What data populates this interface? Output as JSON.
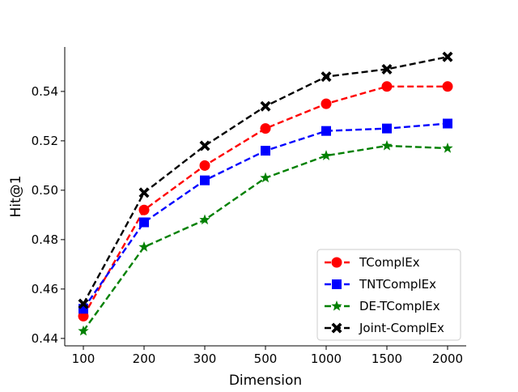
{
  "chart_data": {
    "type": "line",
    "xlabel": "Dimension",
    "ylabel": "Hit@1",
    "categories": [
      "100",
      "200",
      "300",
      "500",
      "1000",
      "1500",
      "2000"
    ],
    "ylim": [
      0.437,
      0.558
    ],
    "yticks": [
      "0.44",
      "0.46",
      "0.48",
      "0.50",
      "0.52",
      "0.54"
    ],
    "grid": false,
    "legend_position": "lower-right",
    "series": [
      {
        "name": "TComplEx",
        "values": [
          0.449,
          0.492,
          0.51,
          0.525,
          0.535,
          0.542,
          0.542
        ],
        "color": "#ff0000",
        "marker": "circle"
      },
      {
        "name": "TNTComplEx",
        "values": [
          0.452,
          0.487,
          0.504,
          0.516,
          0.524,
          0.525,
          0.527
        ],
        "color": "#0000ff",
        "marker": "square"
      },
      {
        "name": "DE-TComplEx",
        "values": [
          0.443,
          0.477,
          0.488,
          0.505,
          0.514,
          0.518,
          0.517
        ],
        "color": "#008000",
        "marker": "star"
      },
      {
        "name": "Joint-ComplEx",
        "values": [
          0.454,
          0.499,
          0.518,
          0.534,
          0.546,
          0.549,
          0.554
        ],
        "color": "#000000",
        "marker": "x"
      }
    ]
  }
}
